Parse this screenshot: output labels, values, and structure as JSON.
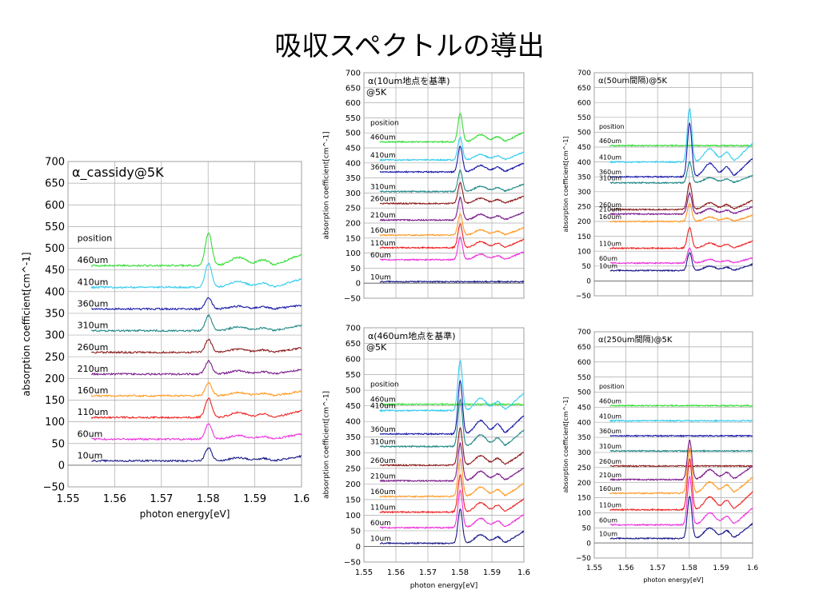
{
  "slide": {
    "title": "吸収スペクトルの導出"
  },
  "chart_data": [
    {
      "id": "main",
      "type": "line",
      "title": "α_cassidy@5K",
      "xlabel": "photon energy[eV]",
      "ylabel": "absorption coefficient[cm^-1]",
      "xlim": [
        1.55,
        1.6
      ],
      "ylim": [
        -50,
        700
      ],
      "x_ticks": [
        1.55,
        1.56,
        1.57,
        1.58,
        1.59,
        1.6
      ],
      "x_tick_labels": [
        "1.55",
        "1.56",
        "1.57",
        "1.58",
        "1.59",
        "1.6"
      ],
      "y_ticks": [
        -50,
        0,
        50,
        100,
        150,
        200,
        250,
        300,
        350,
        400,
        450,
        500,
        550,
        600,
        650,
        700
      ],
      "grid": true,
      "legend_heading": "position",
      "series": [
        {
          "name": "460um",
          "baseline": 460,
          "color": "#33dd33",
          "peak": 75
        },
        {
          "name": "410um",
          "baseline": 410,
          "color": "#33ccee",
          "peak": 55
        },
        {
          "name": "360um",
          "baseline": 360,
          "color": "#1a1aaa",
          "peak": 25
        },
        {
          "name": "310um",
          "baseline": 310,
          "color": "#228888",
          "peak": 35
        },
        {
          "name": "260um",
          "baseline": 260,
          "color": "#8b1a1a",
          "peak": 30
        },
        {
          "name": "210um",
          "baseline": 210,
          "color": "#7a1a8a",
          "peak": 30
        },
        {
          "name": "160um",
          "baseline": 160,
          "color": "#ff9922",
          "peak": 30
        },
        {
          "name": "110um",
          "baseline": 110,
          "color": "#ee2222",
          "peak": 45
        },
        {
          "name": "60um",
          "baseline": 60,
          "color": "#ee33dd",
          "peak": 35
        },
        {
          "name": "10um",
          "baseline": 10,
          "color": "#1a1a88",
          "peak": 30
        }
      ]
    },
    {
      "id": "ref10",
      "type": "line",
      "title": "α(10um地点を基準)",
      "subtitle": "@5K",
      "xlabel": "",
      "ylabel": "absorption coefficient[cm^-1]",
      "xlim": [
        1.55,
        1.6
      ],
      "ylim": [
        -50,
        700
      ],
      "x_ticks": [
        1.55,
        1.56,
        1.57,
        1.58,
        1.59,
        1.6
      ],
      "y_ticks": [
        -50,
        0,
        50,
        100,
        150,
        200,
        250,
        300,
        350,
        400,
        450,
        500,
        550,
        600,
        650,
        700
      ],
      "grid": true,
      "legend_heading": "position",
      "series": [
        {
          "name": "460um",
          "baseline": 470,
          "color": "#33dd33",
          "peak": 95
        },
        {
          "name": "410um",
          "baseline": 410,
          "color": "#33ccee",
          "peak": 75
        },
        {
          "name": "360um",
          "baseline": 370,
          "color": "#1a1aaa",
          "peak": 85
        },
        {
          "name": "310um",
          "baseline": 305,
          "color": "#228888",
          "peak": 70
        },
        {
          "name": "260um",
          "baseline": 265,
          "color": "#8b1a1a",
          "peak": 70
        },
        {
          "name": "210um",
          "baseline": 210,
          "color": "#7a1a8a",
          "peak": 75
        },
        {
          "name": "160um",
          "baseline": 160,
          "color": "#ff9922",
          "peak": 70
        },
        {
          "name": "110um",
          "baseline": 118,
          "color": "#ee2222",
          "peak": 80
        },
        {
          "name": "60um",
          "baseline": 78,
          "color": "#ee33dd",
          "peak": 75
        },
        {
          "name": "10um",
          "baseline": 5,
          "color": "#1a1a88",
          "peak": 0
        }
      ]
    },
    {
      "id": "spacing50",
      "type": "line",
      "title": "α(50um間隔)@5K",
      "xlabel": "",
      "ylabel": "absorption coefficient[cm^-1]",
      "xlim": [
        1.55,
        1.6
      ],
      "ylim": [
        -50,
        700
      ],
      "x_ticks": [
        1.55,
        1.56,
        1.57,
        1.58,
        1.59,
        1.6
      ],
      "y_ticks": [
        -50,
        0,
        50,
        100,
        150,
        200,
        250,
        300,
        350,
        400,
        450,
        500,
        550,
        600,
        650,
        700
      ],
      "grid": true,
      "legend_heading": "position",
      "series": [
        {
          "name": "460um",
          "baseline": 455,
          "color": "#33dd33",
          "peak": 0
        },
        {
          "name": "410um",
          "baseline": 400,
          "color": "#33ccee",
          "peak": 180
        },
        {
          "name": "360um",
          "baseline": 350,
          "color": "#1a1aaa",
          "peak": 180
        },
        {
          "name": "310um",
          "baseline": 330,
          "color": "#228888",
          "peak": 70
        },
        {
          "name": "260um",
          "baseline": 240,
          "color": "#8b1a1a",
          "peak": 90
        },
        {
          "name": "210um",
          "baseline": 225,
          "color": "#7a1a8a",
          "peak": 70
        },
        {
          "name": "160um",
          "baseline": 200,
          "color": "#ff9922",
          "peak": 60
        },
        {
          "name": "110um",
          "baseline": 110,
          "color": "#ee2222",
          "peak": 70
        },
        {
          "name": "60um",
          "baseline": 60,
          "color": "#ee33dd",
          "peak": 50
        },
        {
          "name": "10um",
          "baseline": 35,
          "color": "#1a1a88",
          "peak": 60
        }
      ]
    },
    {
      "id": "ref460",
      "type": "line",
      "title": "α(460um地点を基準)",
      "subtitle": "@5K",
      "xlabel": "photon energy[eV]",
      "ylabel": "absorption coefficient[cm^-1]",
      "xlim": [
        1.55,
        1.6
      ],
      "ylim": [
        -50,
        700
      ],
      "x_ticks": [
        1.55,
        1.56,
        1.57,
        1.58,
        1.59,
        1.6
      ],
      "x_tick_labels": [
        "1.55",
        "1.56",
        "1.57",
        "1.58",
        "1.59",
        "1.6"
      ],
      "y_ticks": [
        -50,
        0,
        50,
        100,
        150,
        200,
        250,
        300,
        350,
        400,
        450,
        500,
        550,
        600,
        650,
        700
      ],
      "grid": true,
      "legend_heading": "position",
      "series": [
        {
          "name": "460um",
          "baseline": 455,
          "color": "#33dd33",
          "peak": 0
        },
        {
          "name": "410um",
          "baseline": 435,
          "color": "#33ccee",
          "peak": 160
        },
        {
          "name": "360um",
          "baseline": 360,
          "color": "#1a1aaa",
          "peak": 170
        },
        {
          "name": "310um",
          "baseline": 320,
          "color": "#228888",
          "peak": 150
        },
        {
          "name": "260um",
          "baseline": 260,
          "color": "#8b1a1a",
          "peak": 120
        },
        {
          "name": "210um",
          "baseline": 210,
          "color": "#7a1a8a",
          "peak": 120
        },
        {
          "name": "160um",
          "baseline": 160,
          "color": "#ff9922",
          "peak": 120
        },
        {
          "name": "110um",
          "baseline": 110,
          "color": "#ee2222",
          "peak": 120
        },
        {
          "name": "60um",
          "baseline": 60,
          "color": "#ee33dd",
          "peak": 120
        },
        {
          "name": "10um",
          "baseline": 10,
          "color": "#1a1a88",
          "peak": 110
        }
      ]
    },
    {
      "id": "spacing250",
      "type": "line",
      "title": "α(250um間隔)@5K",
      "xlabel": "photon energy[eV]",
      "ylabel": "absorption coefficient[cm^-1]",
      "xlim": [
        1.55,
        1.6
      ],
      "ylim": [
        -50,
        700
      ],
      "x_ticks": [
        1.55,
        1.56,
        1.57,
        1.58,
        1.59,
        1.6
      ],
      "x_tick_labels": [
        "1.55",
        "1.56",
        "1.57",
        "1.58",
        "1.59",
        "1.6"
      ],
      "y_ticks": [
        -50,
        0,
        50,
        100,
        150,
        200,
        250,
        300,
        350,
        400,
        450,
        500,
        550,
        600,
        650,
        700
      ],
      "grid": true,
      "legend_heading": "position",
      "series": [
        {
          "name": "460um",
          "baseline": 455,
          "color": "#33dd33",
          "peak": 0
        },
        {
          "name": "410um",
          "baseline": 405,
          "color": "#33ccee",
          "peak": 0
        },
        {
          "name": "360um",
          "baseline": 355,
          "color": "#1a1aaa",
          "peak": 0
        },
        {
          "name": "310um",
          "baseline": 305,
          "color": "#228888",
          "peak": 0
        },
        {
          "name": "260um",
          "baseline": 255,
          "color": "#8b1a1a",
          "peak": 0
        },
        {
          "name": "210um",
          "baseline": 210,
          "color": "#7a1a8a",
          "peak": 130
        },
        {
          "name": "160um",
          "baseline": 165,
          "color": "#ff9922",
          "peak": 150
        },
        {
          "name": "110um",
          "baseline": 110,
          "color": "#ee2222",
          "peak": 170
        },
        {
          "name": "60um",
          "baseline": 60,
          "color": "#ee33dd",
          "peak": 160
        },
        {
          "name": "10um",
          "baseline": 15,
          "color": "#1a1a88",
          "peak": 140
        }
      ]
    }
  ]
}
